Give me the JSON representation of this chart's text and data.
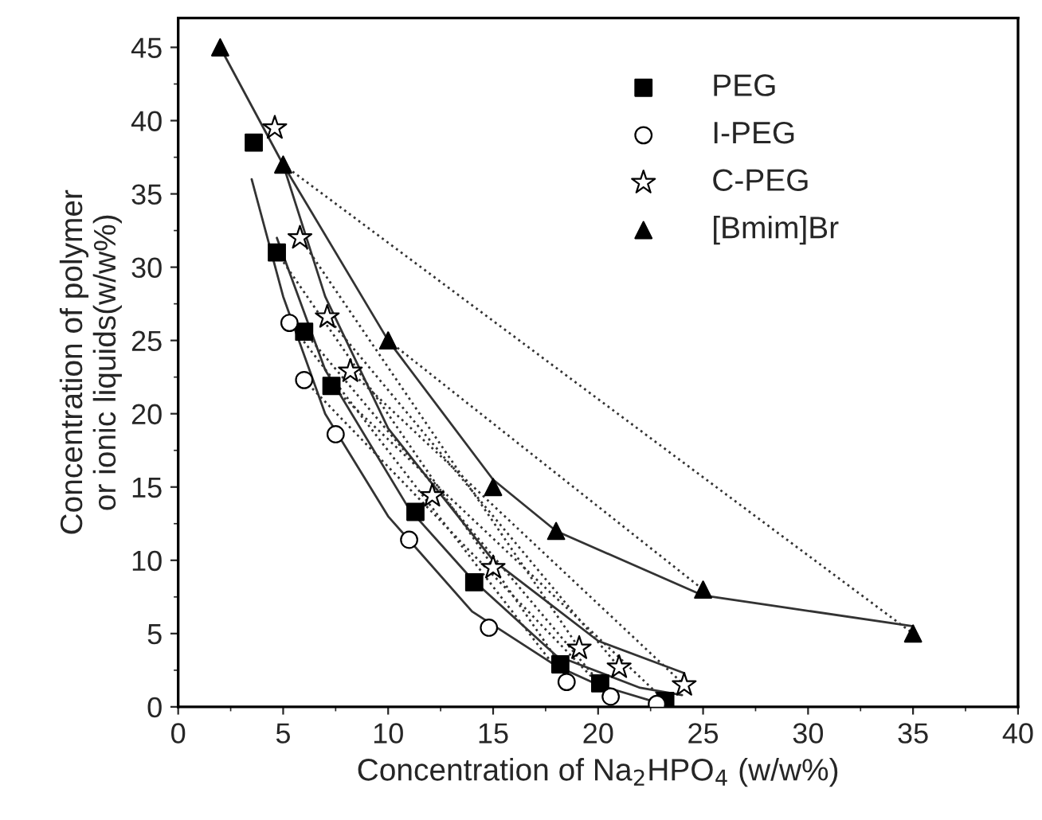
{
  "chart_data": {
    "type": "scatter",
    "xlabel": "Concentration of Na$_{2}$HPO$_{4}$ (w/w%)",
    "ylabel": "Concentration of polymer\nor ionic liquids(w/w%)",
    "xlim": [
      0,
      40
    ],
    "ylim": [
      0,
      47
    ],
    "xticks": [
      0,
      5,
      10,
      15,
      20,
      25,
      30,
      35,
      40
    ],
    "yticks": [
      0,
      5,
      10,
      15,
      20,
      25,
      30,
      35,
      40,
      45
    ],
    "grid": false,
    "legend": "top right",
    "series": [
      {
        "type": "line",
        "color": "#333333",
        "line_style": "solid",
        "x": [
          3.5,
          5,
          7,
          10,
          14,
          18,
          20,
          22.8
        ],
        "values": [
          36,
          28,
          20,
          13,
          6.5,
          2.8,
          1.5,
          0.3
        ]
      },
      {
        "type": "line",
        "color": "#333333",
        "line_style": "solid",
        "x": [
          4.7,
          7,
          11,
          14,
          18,
          22,
          24
        ],
        "values": [
          32,
          23,
          13.5,
          8.7,
          3.5,
          1.3,
          0.8
        ]
      },
      {
        "type": "line",
        "color": "#333333",
        "line_style": "solid",
        "x": [
          5,
          7,
          10,
          15,
          20,
          24.1
        ],
        "values": [
          37,
          28,
          19,
          10,
          4.5,
          2.3
        ]
      },
      {
        "type": "line",
        "color": "#333333",
        "line_style": "solid",
        "x": [
          2,
          5,
          10,
          15,
          18,
          25,
          35
        ],
        "values": [
          45,
          37,
          25,
          15.5,
          12,
          7.6,
          5.5
        ]
      },
      {
        "type": "line",
        "color": "#333333",
        "line_style": "dotted",
        "x": [
          5,
          35
        ],
        "values": [
          37,
          5
        ]
      },
      {
        "type": "line",
        "color": "#333333",
        "line_style": "dotted",
        "x": [
          10,
          25
        ],
        "values": [
          25,
          8
        ]
      },
      {
        "type": "line",
        "color": "#333333",
        "line_style": "dotted",
        "x": [
          5.8,
          19.1
        ],
        "values": [
          32,
          4
        ]
      },
      {
        "type": "line",
        "color": "#333333",
        "line_style": "dotted",
        "x": [
          7.1,
          21
        ],
        "values": [
          26.6,
          2.7
        ]
      },
      {
        "type": "line",
        "color": "#333333",
        "line_style": "dotted",
        "x": [
          8.2,
          24.1
        ],
        "values": [
          22.9,
          1.5
        ]
      },
      {
        "type": "line",
        "color": "#333333",
        "line_style": "dotted",
        "x": [
          4.7,
          18.2
        ],
        "values": [
          31,
          2.9
        ]
      },
      {
        "type": "line",
        "color": "#333333",
        "line_style": "dotted",
        "x": [
          6,
          20.1
        ],
        "values": [
          25.6,
          1.6
        ]
      },
      {
        "type": "line",
        "color": "#333333",
        "line_style": "dotted",
        "x": [
          7.3,
          23.2
        ],
        "values": [
          21.9,
          0.4
        ]
      },
      {
        "type": "line",
        "color": "#333333",
        "line_style": "dotted",
        "x": [
          5.3,
          18.5
        ],
        "values": [
          26.2,
          1.7
        ]
      },
      {
        "type": "line",
        "color": "#333333",
        "line_style": "dotted",
        "x": [
          6,
          20.6
        ],
        "values": [
          22.3,
          0.7
        ]
      },
      {
        "name": "PEG",
        "marker": "square",
        "color": "#000000",
        "x": [
          3.6,
          4.7,
          6,
          7.3,
          11.3,
          14.1,
          18.2,
          20.1,
          23.2
        ],
        "values": [
          38.5,
          31,
          25.6,
          21.9,
          13.3,
          8.5,
          2.9,
          1.6,
          0.4
        ]
      },
      {
        "name": "I-PEG",
        "marker": "circle",
        "color": "#000000",
        "x": [
          5.3,
          6,
          7.5,
          11,
          14.8,
          18.5,
          20.6,
          22.8
        ],
        "values": [
          26.2,
          22.3,
          18.6,
          11.4,
          5.4,
          1.7,
          0.7,
          0.2
        ]
      },
      {
        "name": "C-PEG",
        "marker": "star",
        "color": "#000000",
        "x": [
          4.6,
          5.8,
          7.1,
          8.2,
          12.1,
          15,
          19.1,
          21,
          24.1
        ],
        "values": [
          39.5,
          32,
          26.6,
          22.9,
          14.4,
          9.5,
          4,
          2.7,
          1.5
        ]
      },
      {
        "name": "[Bmim]Br",
        "marker": "triangle",
        "color": "#000000",
        "x": [
          2,
          5,
          10,
          15,
          18,
          25,
          35
        ],
        "values": [
          45,
          37,
          25,
          15,
          12,
          8,
          5
        ]
      }
    ]
  }
}
